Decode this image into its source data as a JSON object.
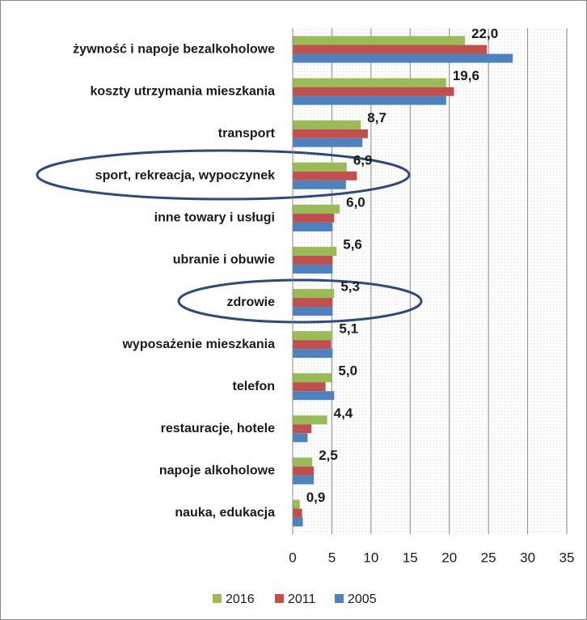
{
  "chart_data": {
    "type": "bar",
    "orientation": "horizontal",
    "categories": [
      "żywność i napoje bezalkoholowe",
      "koszty utrzymania mieszkania",
      "transport",
      "sport, rekreacja, wypoczynek",
      "inne towary i usługi",
      "ubranie i obuwie",
      "zdrowie",
      "wyposażenie mieszkania",
      "telefon",
      "restauracje, hotele",
      "napoje alkoholowe",
      "nauka, edukacja"
    ],
    "series": [
      {
        "name": "2016",
        "color": "#9bbb59",
        "values": [
          22.0,
          19.6,
          8.7,
          6.9,
          6.0,
          5.6,
          5.3,
          5.1,
          5.0,
          4.4,
          2.5,
          0.9
        ],
        "value_labels": [
          "22,0",
          "19,6",
          "8,7",
          "6,9",
          "6,0",
          "5,6",
          "5,3",
          "5,1",
          "5,0",
          "4,4",
          "2,5",
          "0,9"
        ]
      },
      {
        "name": "2011",
        "color": "#c0504d",
        "values": [
          24.8,
          20.6,
          9.6,
          8.2,
          5.3,
          5.1,
          5.1,
          4.9,
          4.2,
          2.4,
          2.7,
          1.2
        ]
      },
      {
        "name": "2005",
        "color": "#4f81bd",
        "values": [
          28.1,
          19.6,
          8.9,
          6.8,
          5.1,
          5.1,
          5.1,
          5.1,
          5.3,
          1.9,
          2.7,
          1.3
        ]
      }
    ],
    "xlim": [
      0,
      35
    ],
    "xticks": [
      0,
      5,
      10,
      15,
      20,
      25,
      30,
      35
    ],
    "grid": true,
    "legend": "bottom"
  }
}
